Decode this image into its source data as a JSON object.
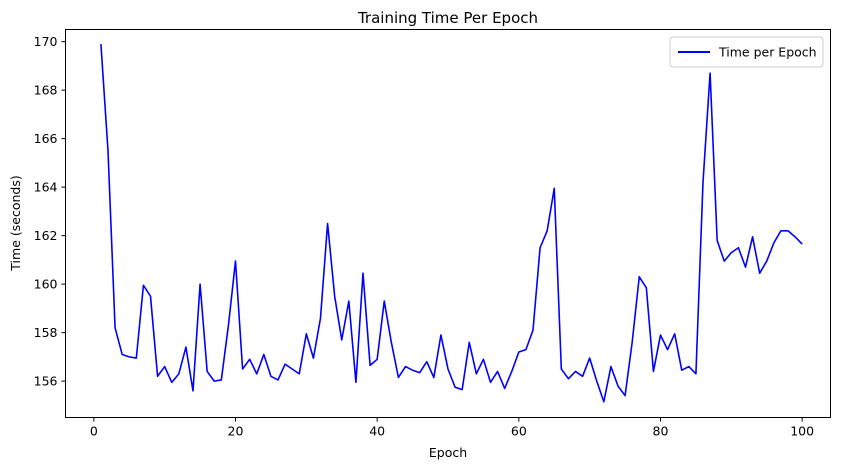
{
  "chart_data": {
    "type": "line",
    "title": "Training Time Per Epoch",
    "xlabel": "Epoch",
    "ylabel": "Time (seconds)",
    "xlim": [
      -4,
      104
    ],
    "ylim": [
      154.5,
      170.5
    ],
    "xticks": [
      0,
      20,
      40,
      60,
      80,
      100
    ],
    "yticks": [
      156,
      158,
      160,
      162,
      164,
      166,
      168,
      170
    ],
    "grid": false,
    "legend_position": "top-right",
    "series": [
      {
        "name": "Time per Epoch",
        "color": "#0000ff",
        "x": [
          1,
          2,
          3,
          4,
          5,
          6,
          7,
          8,
          9,
          10,
          11,
          12,
          13,
          14,
          15,
          16,
          17,
          18,
          19,
          20,
          21,
          22,
          23,
          24,
          25,
          26,
          27,
          28,
          29,
          30,
          31,
          32,
          33,
          34,
          35,
          36,
          37,
          38,
          39,
          40,
          41,
          42,
          43,
          44,
          45,
          46,
          47,
          48,
          49,
          50,
          51,
          52,
          53,
          54,
          55,
          56,
          57,
          58,
          59,
          60,
          61,
          62,
          63,
          64,
          65,
          66,
          67,
          68,
          69,
          70,
          71,
          72,
          73,
          74,
          75,
          76,
          77,
          78,
          79,
          80,
          81,
          82,
          83,
          84,
          85,
          86,
          87,
          88,
          89,
          90,
          91,
          92,
          93,
          94,
          95,
          96,
          97,
          98,
          99,
          100
        ],
        "values": [
          169.9,
          165.5,
          158.2,
          157.1,
          157.0,
          156.95,
          159.95,
          159.5,
          156.2,
          156.6,
          155.95,
          156.3,
          157.4,
          155.6,
          160.0,
          156.4,
          156.0,
          156.05,
          158.3,
          160.95,
          156.5,
          156.9,
          156.3,
          157.1,
          156.2,
          156.05,
          156.7,
          156.5,
          156.3,
          157.95,
          156.95,
          158.6,
          162.5,
          159.5,
          157.7,
          159.3,
          155.95,
          160.45,
          156.65,
          156.9,
          159.3,
          157.6,
          156.15,
          156.6,
          156.45,
          156.35,
          156.8,
          156.15,
          157.9,
          156.5,
          155.75,
          155.65,
          157.6,
          156.3,
          156.9,
          155.95,
          156.4,
          155.7,
          156.4,
          157.2,
          157.3,
          158.1,
          161.5,
          162.2,
          163.95,
          156.5,
          156.1,
          156.4,
          156.2,
          156.95,
          156.0,
          155.15,
          156.6,
          155.8,
          155.4,
          157.6,
          160.3,
          159.85,
          156.4,
          157.9,
          157.3,
          157.95,
          156.45,
          156.6,
          156.3,
          164.2,
          168.7,
          161.8,
          160.95,
          161.3,
          161.5,
          160.7,
          161.95,
          160.45,
          160.95,
          161.7,
          162.2,
          162.2,
          161.95,
          161.65
        ]
      }
    ]
  }
}
